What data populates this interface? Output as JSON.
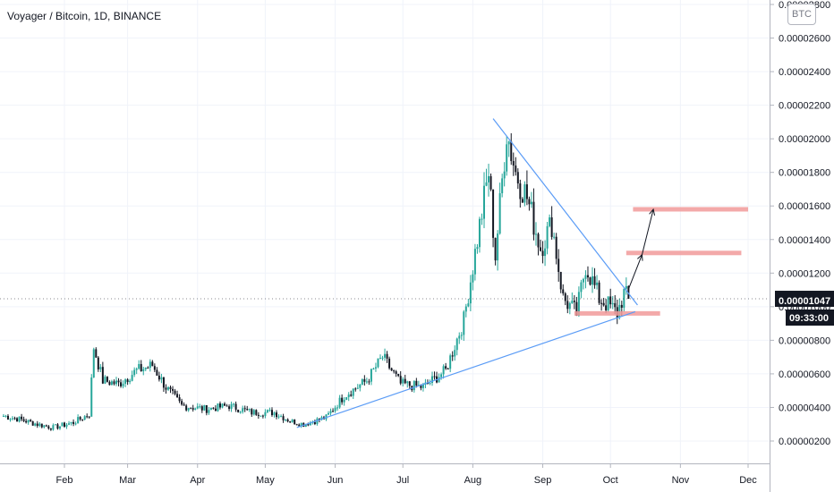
{
  "header": {
    "title": "Voyager / Bitcoin, 1D, BINANCE"
  },
  "currency_label": "BTC",
  "last_price_label": "0.00001047",
  "countdown_label": "09:33:00",
  "colors": {
    "up": "#26a69a",
    "down": "#131722",
    "trendline": "#5b9cf6",
    "zone": "#f19a9a",
    "price_tag": "#131722",
    "arrow": "#131722"
  },
  "chart_data": {
    "type": "candlestick",
    "title": "Voyager / Bitcoin, 1D, BINANCE",
    "x_ticks": [
      "Feb",
      "Mar",
      "Apr",
      "May",
      "Jun",
      "Jul",
      "Aug",
      "Sep",
      "Oct",
      "Nov",
      "Dec"
    ],
    "y_ticks": [
      "0.00000200",
      "0.00000400",
      "0.00000600",
      "0.00000800",
      "0.00001000",
      "0.00001200",
      "0.00001400",
      "0.00001600",
      "0.00001800",
      "0.00002000",
      "0.00002200",
      "0.00002400",
      "0.00002600",
      "0.00002800"
    ],
    "y_range": [
      1e-06,
      2.8e-05
    ],
    "last_price": 1.047e-05,
    "price_path": [
      [
        "2019-01-05",
        3.5e-06
      ],
      [
        "2019-01-12",
        3.3e-06
      ],
      [
        "2019-01-20",
        3e-06
      ],
      [
        "2019-01-27",
        2.8e-06
      ],
      [
        "2019-02-05",
        3.1e-06
      ],
      [
        "2019-02-12",
        3.6e-06
      ],
      [
        "2019-02-14",
        7.6e-06
      ],
      [
        "2019-02-18",
        5.6e-06
      ],
      [
        "2019-02-25",
        5.4e-06
      ],
      [
        "2019-03-05",
        6.2e-06
      ],
      [
        "2019-03-12",
        6.5e-06
      ],
      [
        "2019-03-18",
        5.2e-06
      ],
      [
        "2019-03-25",
        4.1e-06
      ],
      [
        "2019-04-05",
        3.9e-06
      ],
      [
        "2019-04-15",
        4.1e-06
      ],
      [
        "2019-04-25",
        3.7e-06
      ],
      [
        "2019-05-05",
        3.7e-06
      ],
      [
        "2019-05-12",
        3.2e-06
      ],
      [
        "2019-05-18",
        3e-06
      ],
      [
        "2019-05-28",
        3.4e-06
      ],
      [
        "2019-06-05",
        4.7e-06
      ],
      [
        "2019-06-15",
        5.6e-06
      ],
      [
        "2019-06-22",
        7e-06
      ],
      [
        "2019-06-30",
        5.4e-06
      ],
      [
        "2019-07-10",
        5.2e-06
      ],
      [
        "2019-07-20",
        6.2e-06
      ],
      [
        "2019-07-28",
        9.2e-06
      ],
      [
        "2019-08-03",
        1.4e-05
      ],
      [
        "2019-08-08",
        1.8e-05
      ],
      [
        "2019-08-11",
        1.3e-05
      ],
      [
        "2019-08-16",
        2.05e-05
      ],
      [
        "2019-08-20",
        1.8e-05
      ],
      [
        "2019-08-25",
        1.65e-05
      ],
      [
        "2019-08-31",
        1.35e-05
      ],
      [
        "2019-09-05",
        1.5e-05
      ],
      [
        "2019-09-10",
        1.05e-05
      ],
      [
        "2019-09-16",
        9.6e-06
      ],
      [
        "2019-09-20",
        1.25e-05
      ],
      [
        "2019-09-26",
        1.05e-05
      ],
      [
        "2019-10-01",
        1e-05
      ],
      [
        "2019-10-04",
        9.6e-06
      ],
      [
        "2019-10-07",
        1.08e-05
      ],
      [
        "2019-10-09",
        1.047e-05
      ]
    ],
    "annotations": {
      "support_trendline": [
        [
          "2019-05-15",
          2.8e-06
        ],
        [
          "2019-10-12",
          9.7e-06
        ]
      ],
      "resistance_trendline": [
        [
          "2019-08-10",
          2.12e-05
        ],
        [
          "2019-10-13",
          1.01e-05
        ]
      ],
      "zones": [
        {
          "from": "2019-09-15",
          "to": "2019-10-23",
          "price": 9.6e-06
        },
        {
          "from": "2019-10-08",
          "to": "2019-11-28",
          "price": 1.32e-05
        },
        {
          "from": "2019-10-11",
          "to": "2019-12-01",
          "price": 1.58e-05
        }
      ],
      "arrow": [
        [
          "2019-10-09",
          1.105e-05
        ],
        [
          "2019-10-15",
          1.31e-05
        ],
        [
          "2019-10-20",
          1.58e-05
        ]
      ]
    }
  }
}
